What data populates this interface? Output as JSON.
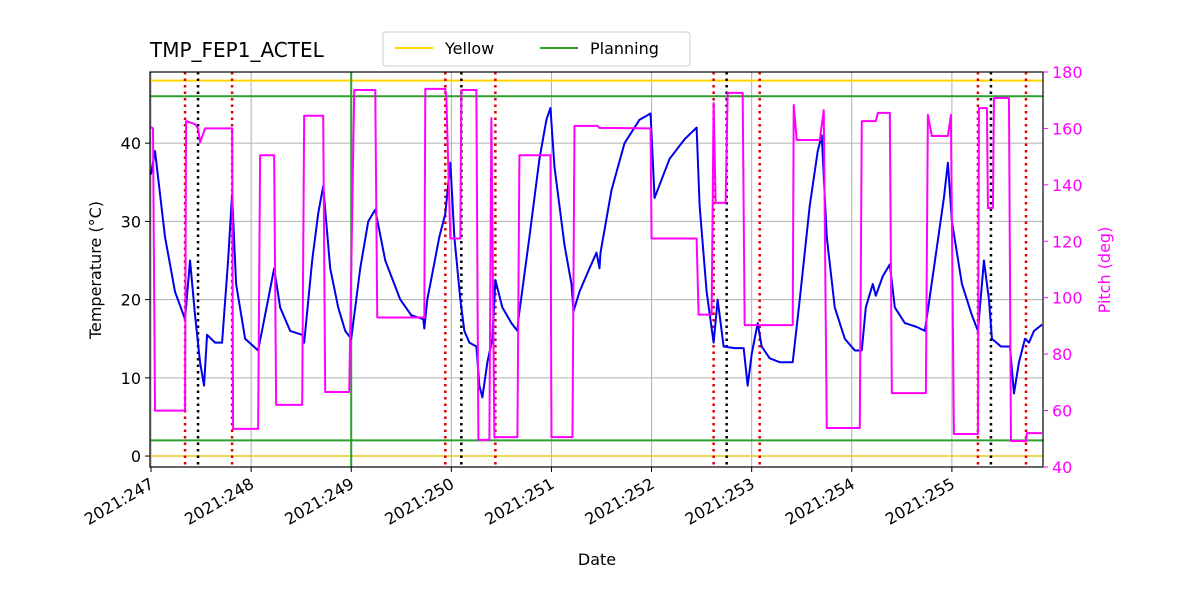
{
  "chart_data": {
    "type": "line",
    "title": "TMP_FEP1_ACTEL",
    "x_label": "Date",
    "y_label": "Temperature (°C)",
    "y2_label": "Pitch (deg)",
    "y2_color": "#ff00ff",
    "xlim": [
      246.99,
      255.91
    ],
    "ylim": [
      -1.4,
      49.1
    ],
    "y2lim": [
      40,
      180
    ],
    "xticks": [
      {
        "value": 247,
        "label": "2021:247"
      },
      {
        "value": 248,
        "label": "2021:248"
      },
      {
        "value": 249,
        "label": "2021:249"
      },
      {
        "value": 250,
        "label": "2021:250"
      },
      {
        "value": 251,
        "label": "2021:251"
      },
      {
        "value": 252,
        "label": "2021:252"
      },
      {
        "value": 253,
        "label": "2021:253"
      },
      {
        "value": 254,
        "label": "2021:254"
      },
      {
        "value": 255,
        "label": "2021:255"
      }
    ],
    "yticks": [
      0,
      10,
      20,
      30,
      40
    ],
    "y2ticks": [
      40,
      60,
      80,
      100,
      120,
      140,
      160,
      180
    ],
    "grid": true,
    "legend": "top",
    "limit_lines": [
      {
        "name": "Yellow",
        "color": "#ffd700",
        "values": [
          48,
          0
        ]
      },
      {
        "name": "Planning",
        "color": "#2ca02c",
        "values": [
          46,
          2
        ]
      }
    ],
    "vertical_lines": [
      {
        "color": "#dd0000",
        "style": "dotted",
        "x": [
          247.34,
          247.81,
          249.94,
          250.44,
          252.62,
          253.08,
          255.26,
          255.74
        ]
      },
      {
        "color": "#000000",
        "style": "dotted",
        "x": [
          247.47,
          250.1,
          252.75,
          255.39
        ]
      },
      {
        "color": "#2ca02c",
        "style": "solid",
        "x": [
          249.0
        ]
      }
    ],
    "series": [
      {
        "color": "#0000ee",
        "x": [
          247.0,
          247.04,
          247.14,
          247.24,
          247.34,
          247.39,
          247.44,
          247.49,
          247.53,
          247.56,
          247.64,
          247.71,
          247.77,
          247.81,
          247.85,
          247.94,
          248.07,
          248.17,
          248.23,
          248.29,
          248.39,
          248.51,
          248.53,
          248.61,
          248.67,
          248.72,
          248.79,
          248.87,
          248.94,
          249.0,
          249.09,
          249.17,
          249.24,
          249.34,
          249.49,
          249.6,
          249.72,
          249.73,
          249.76,
          249.88,
          249.94,
          249.99,
          250.03,
          250.09,
          250.13,
          250.18,
          250.25,
          250.28,
          250.31,
          250.36,
          250.41,
          250.44,
          250.51,
          250.6,
          250.66,
          250.67,
          250.78,
          250.88,
          250.95,
          250.99,
          251.03,
          251.13,
          251.2,
          251.22,
          251.28,
          251.38,
          251.45,
          251.48,
          251.49,
          251.6,
          251.73,
          251.88,
          251.99,
          252.03,
          252.18,
          252.33,
          252.45,
          252.48,
          252.55,
          252.62,
          252.66,
          252.72,
          252.83,
          252.92,
          252.96,
          253.0,
          253.06,
          253.1,
          253.18,
          253.28,
          253.41,
          253.48,
          253.58,
          253.66,
          253.7,
          253.75,
          253.83,
          253.93,
          254.03,
          254.1,
          254.14,
          254.21,
          254.24,
          254.31,
          254.38,
          254.43,
          254.53,
          254.65,
          254.73,
          254.82,
          254.92,
          254.96,
          255.0,
          255.1,
          255.2,
          255.26,
          255.32,
          255.37,
          255.4,
          255.49,
          255.58,
          255.62,
          255.67,
          255.73,
          255.77,
          255.82,
          255.9
        ],
        "values": [
          36,
          39,
          28,
          21,
          17.5,
          25,
          18,
          12,
          9,
          15.5,
          14.5,
          14.5,
          25,
          33.5,
          22,
          15,
          13.5,
          20,
          24,
          19,
          16,
          15.5,
          14.5,
          25,
          31,
          34.5,
          24,
          19,
          16,
          15,
          24,
          30,
          31.5,
          25,
          20,
          18,
          17.5,
          16.3,
          20,
          28,
          31,
          37.5,
          28,
          20,
          16,
          14.5,
          14,
          9,
          7.5,
          12,
          15,
          22.5,
          19,
          17,
          16,
          17.5,
          28,
          38,
          43,
          44.5,
          37,
          27,
          22,
          18.5,
          21,
          24,
          26,
          24,
          26,
          34,
          40,
          43,
          43.8,
          33,
          38,
          40.5,
          42,
          32,
          21,
          14.5,
          20,
          14,
          13.8,
          13.8,
          9,
          13,
          17,
          14,
          12.5,
          12,
          12,
          20,
          32,
          39,
          41,
          28,
          19,
          15,
          13.5,
          13.5,
          19,
          22,
          20.5,
          23,
          24.5,
          19,
          17,
          16.5,
          16,
          24,
          33,
          37.5,
          30,
          22,
          18,
          16,
          25,
          20,
          15,
          14,
          14,
          8,
          12,
          15,
          14.5,
          16,
          16.8
        ]
      },
      {
        "color": "#ff00ff",
        "axis": "y2",
        "x": [
          247.0,
          247.02,
          247.04,
          247.34,
          247.35,
          247.44,
          247.47,
          247.49,
          247.54,
          247.81,
          247.82,
          248.07,
          248.09,
          248.23,
          248.25,
          248.51,
          248.53,
          248.72,
          248.74,
          248.98,
          249.03,
          249.24,
          249.26,
          249.73,
          249.74,
          249.94,
          249.95,
          249.99,
          250.09,
          250.1,
          250.25,
          250.27,
          250.38,
          250.4,
          250.43,
          250.66,
          250.68,
          250.99,
          251.0,
          251.21,
          251.23,
          251.46,
          251.48,
          251.99,
          252.0,
          252.45,
          252.47,
          252.6,
          252.62,
          252.64,
          252.74,
          252.76,
          252.91,
          252.93,
          253.41,
          253.42,
          253.45,
          253.68,
          253.72,
          253.75,
          254.08,
          254.1,
          254.24,
          254.26,
          254.38,
          254.4,
          254.74,
          254.76,
          254.8,
          254.96,
          254.99,
          255.02,
          255.26,
          255.27,
          255.35,
          255.36,
          255.41,
          255.42,
          255.57,
          255.59,
          255.74,
          255.75,
          255.9
        ],
        "values": [
          160.5,
          160,
          60,
          60,
          162.6,
          161.5,
          160,
          155,
          160,
          160,
          53.5,
          53.5,
          150.5,
          150.5,
          62,
          62,
          164.5,
          164.5,
          66.6,
          66.6,
          173.6,
          173.6,
          93,
          93,
          174,
          174,
          171,
          121,
          121,
          173.6,
          173.6,
          49.6,
          49.6,
          163.7,
          50.6,
          50.6,
          150.5,
          150.5,
          50.6,
          50.6,
          160.9,
          160.9,
          160.2,
          160,
          121,
          121,
          94,
          94,
          169,
          133.6,
          133.6,
          172.6,
          172.6,
          90.3,
          90.3,
          168.3,
          155.9,
          155.9,
          166.5,
          53.8,
          53.8,
          162.6,
          162.6,
          165.5,
          165.5,
          66.2,
          66.2,
          164.8,
          157.3,
          157.3,
          164.8,
          51.7,
          51.7,
          167.2,
          167.2,
          131.8,
          131.8,
          170.8,
          170.8,
          49.2,
          49.2,
          52,
          52
        ]
      }
    ]
  }
}
